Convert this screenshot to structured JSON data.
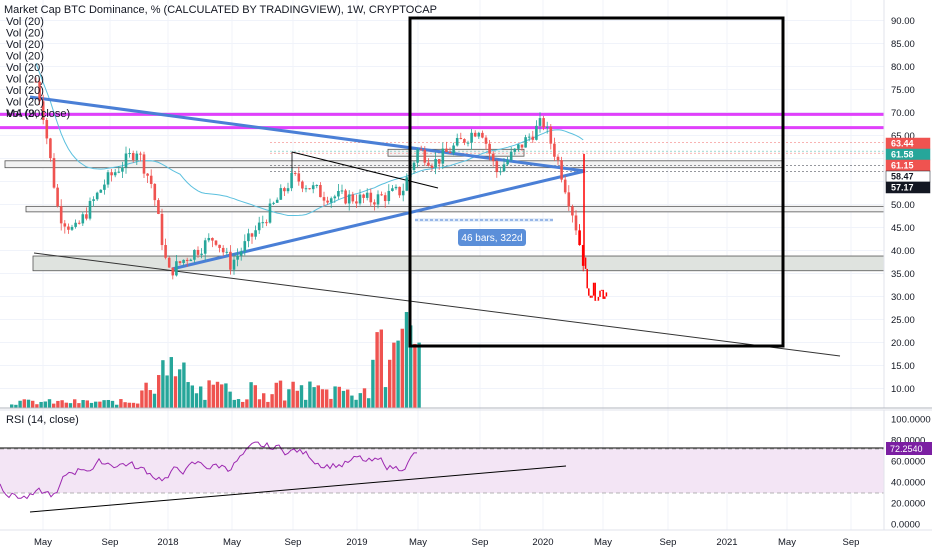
{
  "header": {
    "title": "Market Cap BTC Dominance, % (CALCULATED BY TRADINGVIEW), 1W, CRYPTOCAP",
    "volume_legend": [
      "Vol (20)",
      "Vol (20)",
      "Vol (20)",
      "Vol (20)",
      "Vol (20)",
      "Vol (20)",
      "Vol (20)",
      "Vol (20)",
      "Vol (20)"
    ],
    "ma_legend": "MA (9, close)"
  },
  "rsi_panel": {
    "title": "RSI (14, close)",
    "current_value": "72.2540"
  },
  "measure_label": "46 bars, 322d",
  "price_tags": [
    {
      "value": "63.44",
      "bg": "#ef5350",
      "fg": "#ffffff"
    },
    {
      "value": "61.58",
      "bg": "#26a69a",
      "fg": "#ffffff"
    },
    {
      "value": "61.15",
      "bg": "#ef5350",
      "fg": "#ffffff"
    },
    {
      "value": "58.47",
      "bg": "#ffffff",
      "fg": "#131722"
    },
    {
      "value": "57.17",
      "bg": "#131722",
      "fg": "#ffffff"
    }
  ],
  "colors": {
    "up": "#26a69a",
    "down": "#ef5350",
    "projection": "#ff0000",
    "trendline": "#4a7fd6",
    "resistance": "#e040fb",
    "ma": "#5bc0de",
    "rsi": "#9c27b0",
    "rsi_band": "#f3e5f5"
  },
  "chart_data": {
    "type": "candlestick",
    "title": "Market Cap BTC Dominance, % (CALCULATED BY TRADINGVIEW), 1W, CRYPTOCAP",
    "interval": "1W",
    "y_axis": {
      "ticks": [
        "90.00",
        "85.00",
        "80.00",
        "75.00",
        "70.00",
        "65.00",
        "60.00",
        "55.00",
        "50.00",
        "45.00",
        "40.00",
        "35.00",
        "30.00",
        "25.00",
        "20.00",
        "15.00",
        "10.00"
      ],
      "range": [
        10,
        90
      ]
    },
    "x_axis": {
      "ticks": [
        "May",
        "Sep",
        "2018",
        "May",
        "Sep",
        "2019",
        "May",
        "Sep",
        "2020",
        "May",
        "Sep",
        "2021",
        "May",
        "Sep"
      ]
    },
    "rsi_axis": {
      "ticks": [
        "100.0000",
        "80.0000",
        "60.0000",
        "40.0000",
        "20.0000",
        "0.0000"
      ],
      "bands": [
        30,
        70
      ]
    },
    "price_path": {
      "comment_free": true,
      "dates": [
        "2017-04",
        "2017-05",
        "2017-06",
        "2017-07",
        "2017-09",
        "2017-11",
        "2017-12",
        "2018-01",
        "2018-02",
        "2018-04",
        "2018-05",
        "2018-07",
        "2018-09",
        "2018-11",
        "2019-02",
        "2019-04",
        "2019-05",
        "2019-06",
        "2019-09",
        "2019-10",
        "2020-01",
        "2020-02",
        "2020-03",
        "2020-04"
      ],
      "close": [
        85,
        70,
        48,
        44,
        55,
        62,
        54,
        35,
        38,
        43,
        37,
        46,
        56,
        52,
        51,
        53,
        62,
        59,
        67,
        57,
        68,
        59,
        47,
        31
      ]
    },
    "resistance_levels": [
      69.6,
      66.7
    ],
    "zones": [
      {
        "low": 60.5,
        "high": 62.0
      },
      {
        "low": 58.0,
        "high": 59.5
      },
      {
        "low": 48.4,
        "high": 49.6
      },
      {
        "low": 35.6,
        "high": 38.8
      }
    ]
  }
}
